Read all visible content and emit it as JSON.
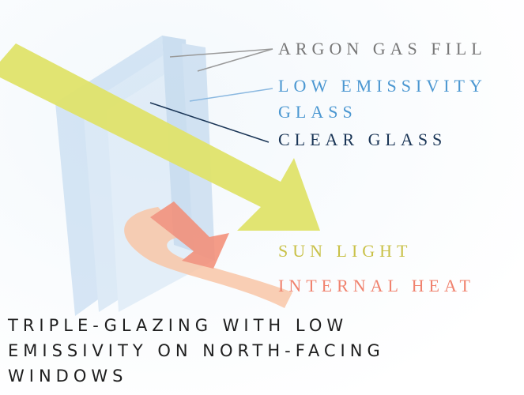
{
  "labels": [
    {
      "lines": [
        "ARGON GAS FILL"
      ]
    },
    {
      "lines": [
        "LOW EMISSIVITY",
        "GLASS"
      ]
    },
    {
      "lines": [
        "CLEAR GLASS"
      ]
    },
    {
      "lines": [
        "SUN LIGHT"
      ]
    },
    {
      "lines": [
        "INTERNAL HEAT"
      ]
    }
  ],
  "title": {
    "lines": [
      "TRIPLE-GLAZING WITH LOW",
      "EMISSIVITY ON NORTH-FACING",
      "WINDOWS"
    ]
  }
}
